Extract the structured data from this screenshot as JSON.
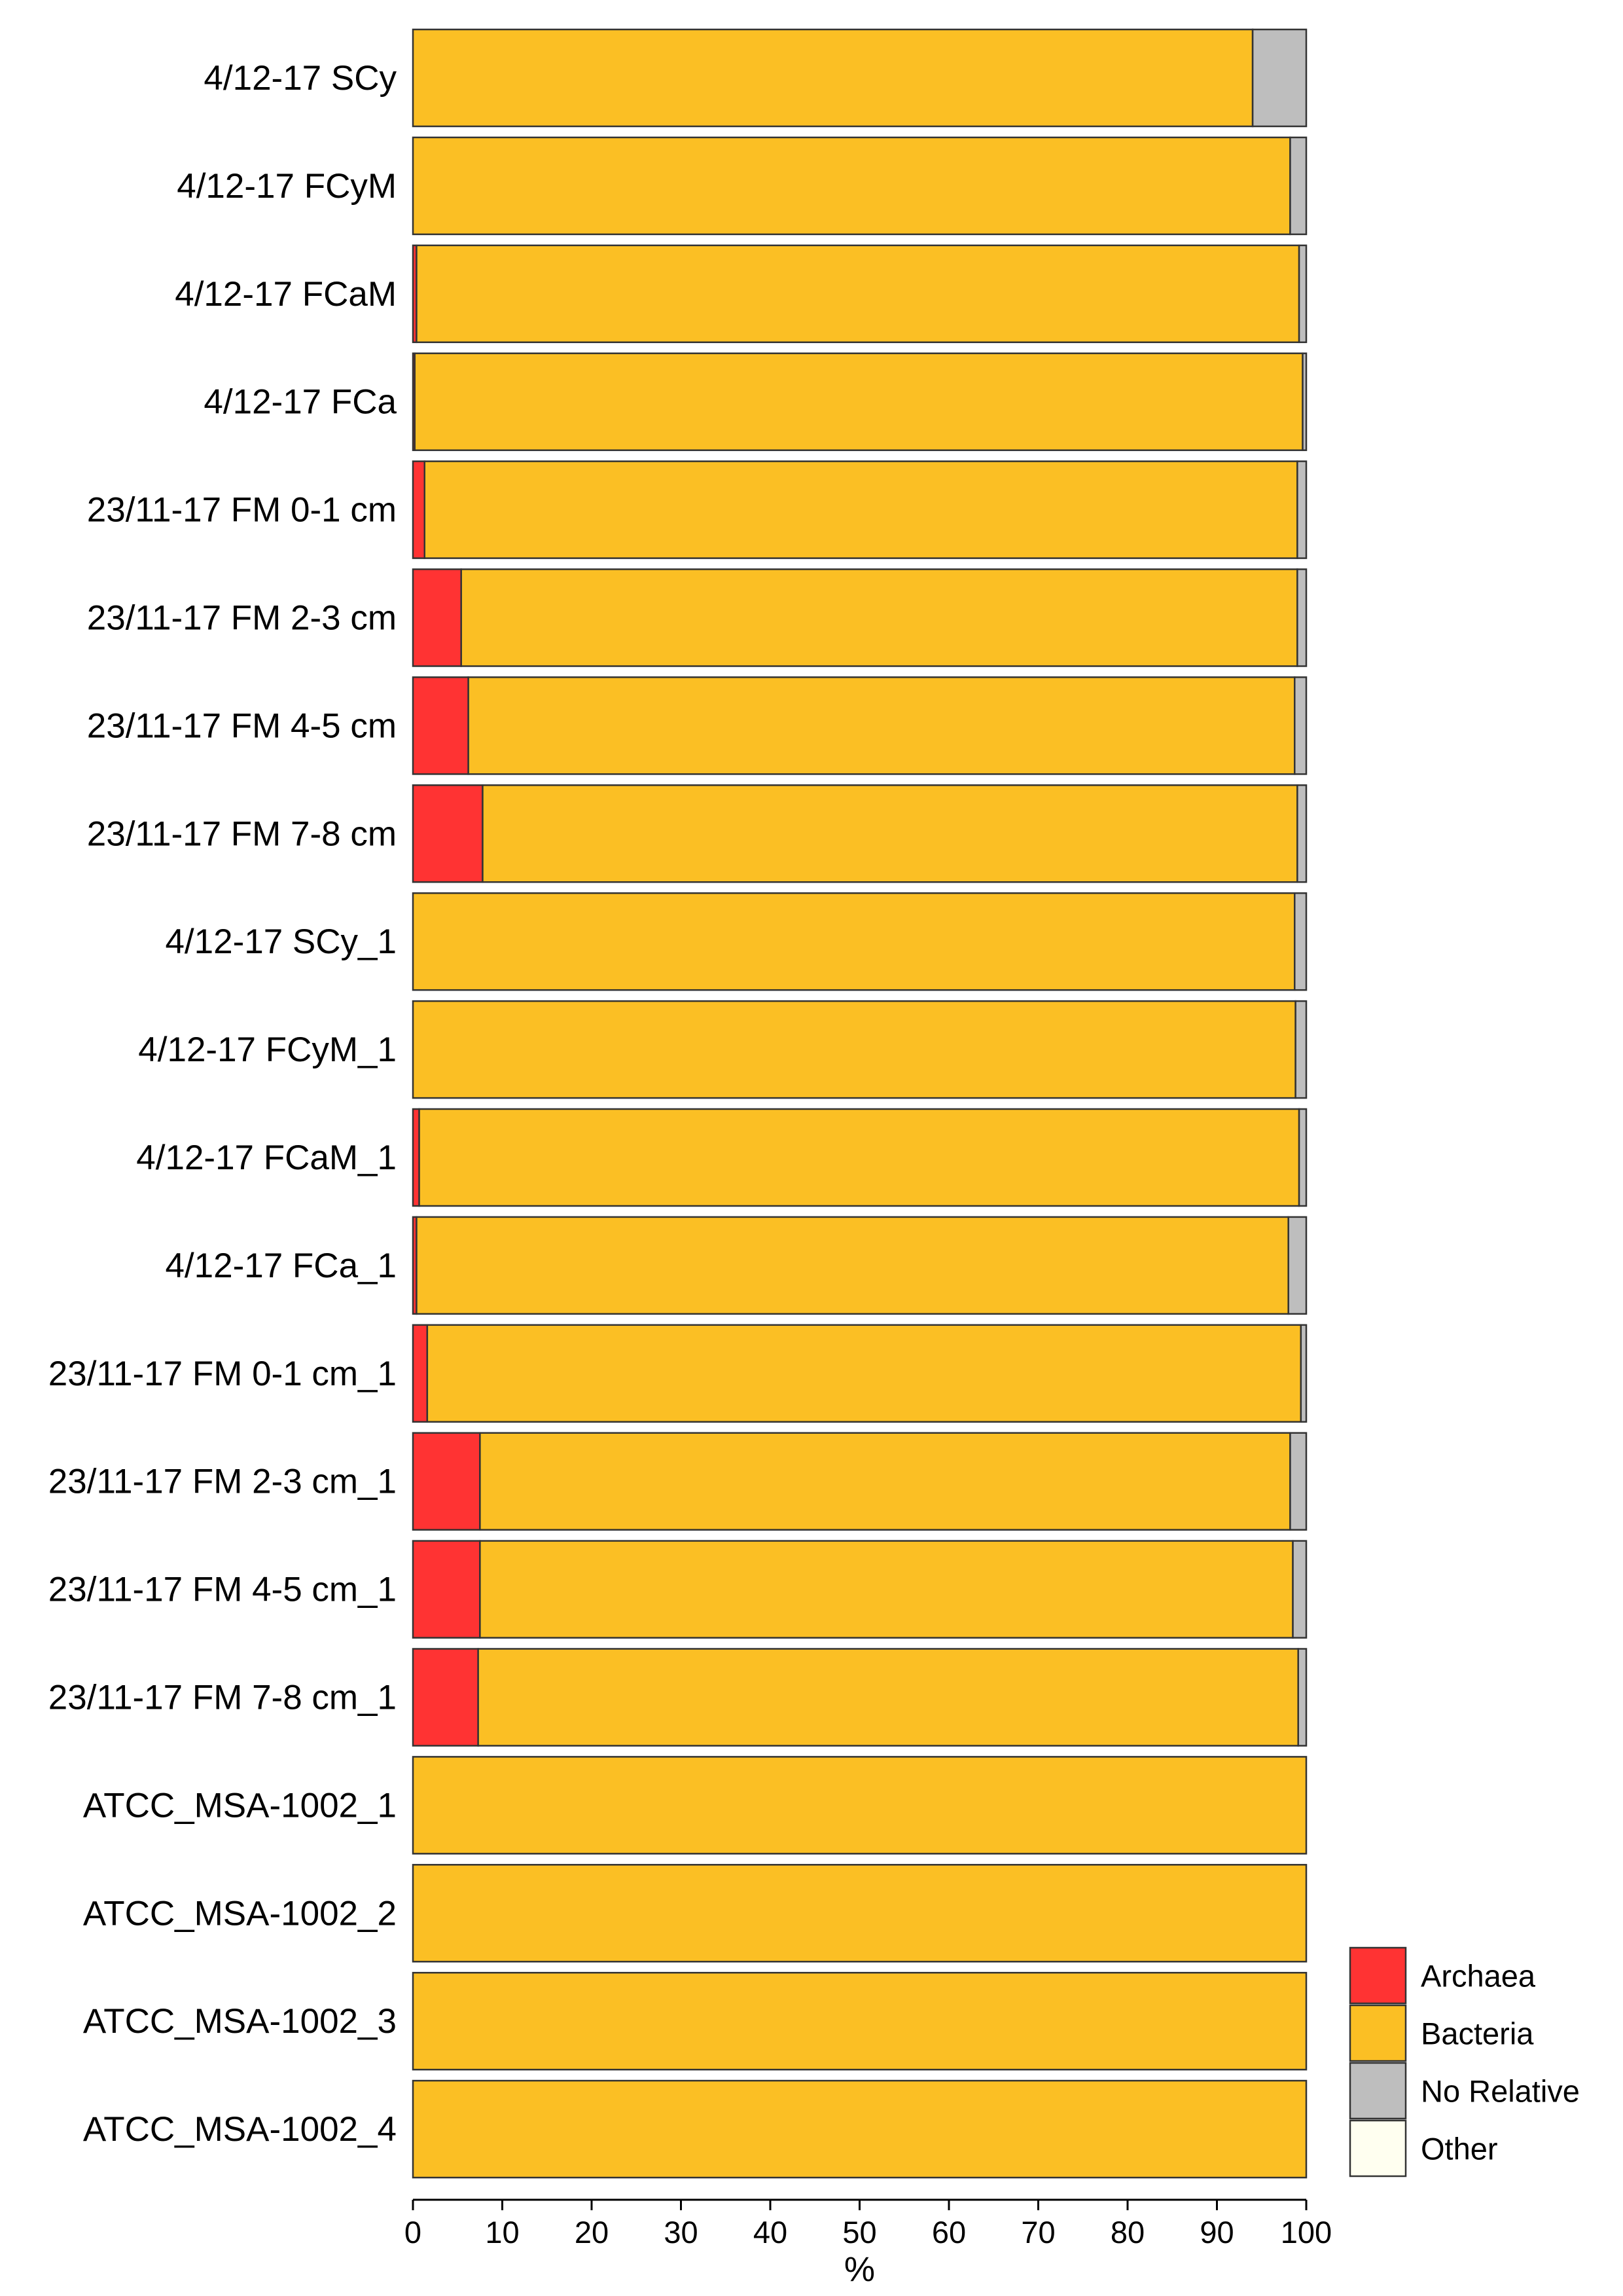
{
  "chart_data": {
    "type": "bar",
    "orientation": "horizontal",
    "stacked": true,
    "title": "",
    "xlabel": "%",
    "ylabel": "",
    "xlim": [
      0,
      100
    ],
    "xticks": [
      0,
      10,
      20,
      30,
      40,
      50,
      60,
      70,
      80,
      90,
      100
    ],
    "grid": false,
    "legend_position": "bottom-right",
    "categories": [
      "4/12-17 SCy",
      "4/12-17 FCyM",
      "4/12-17 FCaM",
      "4/12-17 FCa",
      "23/11-17 FM 0-1 cm",
      "23/11-17 FM 2-3 cm",
      "23/11-17 FM 4-5 cm",
      "23/11-17 FM 7-8 cm",
      "4/12-17 SCy_1",
      "4/12-17 FCyM_1",
      "4/12-17 FCaM_1",
      "4/12-17 FCa_1",
      "23/11-17 FM 0-1 cm_1",
      "23/11-17 FM 2-3 cm_1",
      "23/11-17 FM 4-5 cm_1",
      "23/11-17 FM 7-8 cm_1",
      "ATCC_MSA-1002_1",
      "ATCC_MSA-1002_2",
      "ATCC_MSA-1002_3",
      "ATCC_MSA-1002_4"
    ],
    "series": [
      {
        "name": "Archaea",
        "color": "#FF3333",
        "values": [
          0,
          0,
          0.4,
          0.2,
          1.3,
          5.4,
          6.2,
          7.8,
          0,
          0,
          0.7,
          0.4,
          1.6,
          7.5,
          7.5,
          7.3,
          0,
          0,
          0,
          0
        ]
      },
      {
        "name": "Bacteria",
        "color": "#FBBF24",
        "values": [
          94.0,
          98.2,
          98.8,
          99.4,
          97.7,
          93.6,
          92.5,
          91.2,
          98.7,
          98.8,
          98.5,
          97.6,
          97.8,
          90.7,
          91.0,
          91.8,
          100,
          100,
          100,
          100
        ]
      },
      {
        "name": "No Relative",
        "color": "#BEBEBE",
        "values": [
          6.0,
          1.8,
          0.8,
          0.4,
          1.0,
          1.0,
          1.3,
          1.0,
          1.3,
          1.2,
          0.8,
          2.0,
          0.6,
          1.8,
          1.5,
          0.9,
          0,
          0,
          0,
          0
        ]
      },
      {
        "name": "Other",
        "color": "#FFFFF0",
        "values": [
          0,
          0,
          0,
          0,
          0,
          0,
          0,
          0,
          0,
          0,
          0,
          0,
          0,
          0,
          0,
          0,
          0,
          0,
          0,
          0
        ]
      }
    ]
  }
}
